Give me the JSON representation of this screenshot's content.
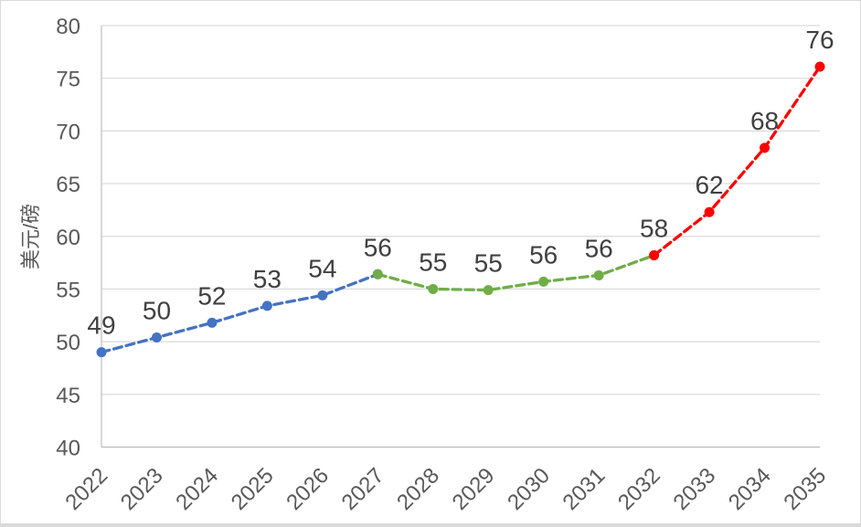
{
  "chart": {
    "y_axis_title": "美元/磅",
    "background_color": "#ffffff",
    "frame_border_color": "#d9d9d9",
    "gridline_color": "#d9d9d9",
    "axis_line_color": "#bfbfbf",
    "tick_label_color": "#595959",
    "data_label_color": "#404040"
  },
  "chart_data": {
    "type": "line",
    "title": "",
    "xlabel": "",
    "ylabel": "美元/磅",
    "categories": [
      "2022",
      "2023",
      "2024",
      "2025",
      "2026",
      "2027",
      "2028",
      "2029",
      "2030",
      "2031",
      "2032",
      "2033",
      "2034",
      "2035"
    ],
    "values": [
      49.0,
      50.4,
      51.8,
      53.4,
      54.4,
      56.4,
      55.0,
      54.9,
      55.7,
      56.3,
      58.2,
      62.3,
      68.4,
      76.1
    ],
    "point_labels": [
      "49",
      "50",
      "52",
      "53",
      "54",
      "56",
      "55",
      "55",
      "56",
      "56",
      "58",
      "62",
      "68",
      "76"
    ],
    "series": [
      {
        "name": "segment-blue",
        "color": "#4472C4",
        "start_index": 0,
        "end_index": 5,
        "x": [
          "2022",
          "2023",
          "2024",
          "2025",
          "2026",
          "2027"
        ],
        "values": [
          49.0,
          50.4,
          51.8,
          53.4,
          54.4,
          56.4
        ]
      },
      {
        "name": "segment-green",
        "color": "#70AD47",
        "start_index": 5,
        "end_index": 10,
        "x": [
          "2027",
          "2028",
          "2029",
          "2030",
          "2031",
          "2032"
        ],
        "values": [
          56.4,
          55.0,
          54.9,
          55.7,
          56.3,
          58.2
        ]
      },
      {
        "name": "segment-red",
        "color": "#FF0000",
        "start_index": 10,
        "end_index": 13,
        "x": [
          "2032",
          "2033",
          "2034",
          "2035"
        ],
        "values": [
          58.2,
          62.3,
          68.4,
          76.1
        ]
      }
    ],
    "ylim": [
      40,
      80
    ],
    "yticks": [
      40,
      45,
      50,
      55,
      60,
      65,
      70,
      75,
      80
    ],
    "grid": true,
    "legend": false,
    "line_style": "dashed",
    "marker": "circle",
    "x_tick_rotation": -45
  }
}
